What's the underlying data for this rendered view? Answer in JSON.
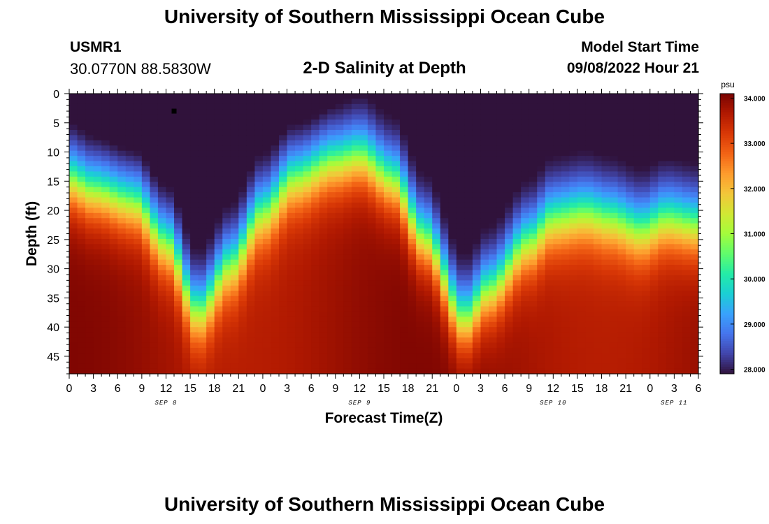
{
  "header": {
    "title": "University of Southern Mississippi Ocean Cube",
    "station": "USMR1",
    "coords": "30.0770N  88.5830W",
    "subtitle": "2-D Salinity at Depth",
    "model_start_label": "Model Start Time",
    "model_start_value": "09/08/2022 Hour 21"
  },
  "footer": {
    "title": "University of Southern Mississippi Ocean Cube"
  },
  "chart_data": {
    "type": "heatmap",
    "title": "2-D Salinity at Depth",
    "xlabel": "Forecast Time(Z)",
    "ylabel": "Depth (ft)",
    "x_ticks": [
      "0",
      "3",
      "6",
      "9",
      "12",
      "15",
      "18",
      "21",
      "0",
      "3",
      "6",
      "9",
      "12",
      "15",
      "18",
      "21",
      "0",
      "3",
      "6",
      "9",
      "12",
      "15",
      "18",
      "21",
      "0",
      "3",
      "6"
    ],
    "x_range_hours": [
      0,
      78
    ],
    "day_labels": [
      {
        "label": "SEP 8",
        "hour": 12
      },
      {
        "label": "SEP 9",
        "hour": 36
      },
      {
        "label": "SEP 10",
        "hour": 60
      },
      {
        "label": "SEP 11",
        "hour": 75
      }
    ],
    "y_ticks": [
      0,
      5,
      10,
      15,
      20,
      25,
      30,
      35,
      40,
      45
    ],
    "ylim": [
      0,
      48
    ],
    "colorbar": {
      "unit": "psu",
      "min": 27.9,
      "max": 34.1,
      "ticks": [
        "34.000",
        "33.000",
        "32.000",
        "31.000",
        "30.000",
        "29.000",
        "28.000"
      ],
      "colors": [
        "#30123b",
        "#4145ab",
        "#4675ed",
        "#39a2fc",
        "#1bcfd4",
        "#24eca6",
        "#61fc6c",
        "#a4fc3b",
        "#d1e834",
        "#f3c63a",
        "#fe9b2d",
        "#f36315",
        "#d93806",
        "#b11901",
        "#7a0402"
      ]
    },
    "marker": {
      "hour": 13,
      "depth_ft": 3
    },
    "halocline_depth_ft": {
      "hours": [
        0,
        3,
        8,
        12,
        16,
        20,
        24,
        28,
        33,
        36,
        40,
        44,
        49,
        52,
        57,
        60,
        64,
        67,
        71,
        74,
        78
      ],
      "values": [
        14,
        16,
        18,
        25,
        37,
        29,
        20,
        14,
        11,
        10,
        14,
        24,
        38,
        33,
        25,
        21,
        20,
        21,
        23,
        21,
        22
      ]
    },
    "surface_fresh_min_psu": 28.0,
    "bottom_salinity_psu": 34.0
  }
}
